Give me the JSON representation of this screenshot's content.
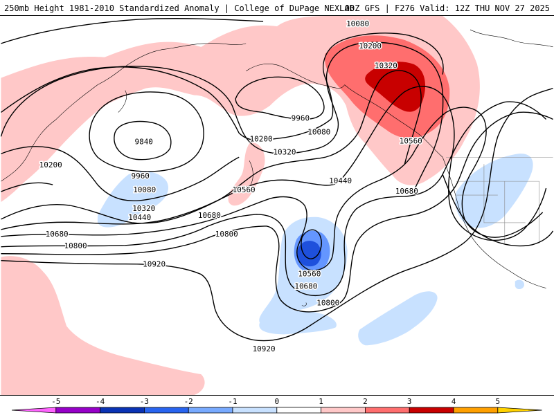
{
  "header": {
    "title_left": "250mb Height 1981-2010 Standardized Anomaly | College of DuPage NEXLAB",
    "title_right": "00Z GFS | F276 Valid: 12Z THU NOV 27 2025"
  },
  "map": {
    "contour_labels": [
      "9840",
      "9960",
      "10080",
      "10200",
      "10320",
      "10440",
      "10560",
      "10680",
      "10800",
      "10920"
    ],
    "labels": {
      "l9840": "9840",
      "l9960a": "9960",
      "l9960b": "9960",
      "l10080a": "10080",
      "l10080b": "10080",
      "l10080c": "10080",
      "l10200a": "10200",
      "l10200b": "10200",
      "l10200c": "10200",
      "l10320a": "10320",
      "l10320b": "10320",
      "l10320c": "10320",
      "l10440a": "10440",
      "l10440b": "10440",
      "l10560a": "10560",
      "l10560b": "10560",
      "l10560c": "10560",
      "l10680a": "10680",
      "l10680b": "10680",
      "l10680c": "10680",
      "l10680d": "10680",
      "l10800a": "10800",
      "l10800b": "10800",
      "l10800c": "10800",
      "l10920a": "10920",
      "l10920b": "10920"
    },
    "colors": {
      "pos1": "#ffc8c8",
      "pos2": "#ff6e6e",
      "pos3": "#c80000",
      "neg1": "#c8e1ff",
      "neg2": "#6496ff",
      "neg3": "#1e50dc"
    }
  },
  "colorbar": {
    "ticks": [
      "-5",
      "-4",
      "-3",
      "-2",
      "-1",
      "0",
      "1",
      "2",
      "3",
      "4",
      "5"
    ],
    "colors": [
      "#ff64ff",
      "#9600c8",
      "#0a32b4",
      "#2864f0",
      "#78aaff",
      "#c8e1ff",
      "#ffffff",
      "#ffc8c8",
      "#ff6e6e",
      "#c80000",
      "#ffa000",
      "#ffd200"
    ]
  }
}
